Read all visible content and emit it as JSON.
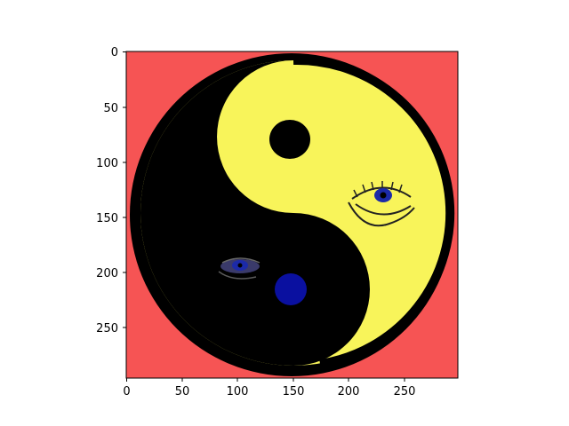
{
  "figure": {
    "image_description_colors": {
      "background": "#f65454",
      "yin": "#000000",
      "yang": "#f8f45a",
      "dot_yang_side": "#000000",
      "dot_yin_side": "#0a10a0",
      "eye_iris": "#1c2aa8"
    },
    "axes": {
      "x_ticks": [
        "0",
        "50",
        "100",
        "150",
        "200",
        "250"
      ],
      "y_ticks": [
        "0",
        "50",
        "100",
        "150",
        "200",
        "250"
      ]
    }
  }
}
